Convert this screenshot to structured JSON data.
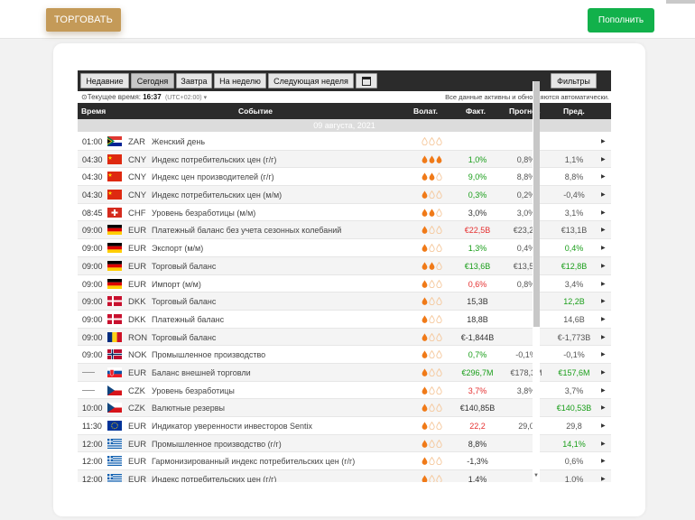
{
  "header": {
    "trade_label": "ТОРГОВАТЬ",
    "deposit_label": "Пополнить"
  },
  "toolbar": {
    "tabs": [
      {
        "label": "Недавние"
      },
      {
        "label": "Сегодня"
      },
      {
        "label": "Завтра"
      },
      {
        "label": "На неделю"
      },
      {
        "label": "Следующая неделя"
      }
    ],
    "calendar_icon": "calendar-icon",
    "filters_label": "Фильтры"
  },
  "status": {
    "time_label": "Текущее время:",
    "time_value": "16:37",
    "timezone": "(UTC+02:00)",
    "note": "Все данные активны и обновляются автоматически."
  },
  "columns": {
    "time": "Время",
    "event": "Событие",
    "volatility": "Волат.",
    "actual": "Факт.",
    "forecast": "Прогноз",
    "previous": "Пред."
  },
  "date_label": "09 августа, 2021",
  "colors": {
    "green": "#1a9e1a",
    "red": "#e53030",
    "volatility_high": "#f07a18",
    "volatility_low": "#f5c79a",
    "trade_button": "#c49a58",
    "deposit_button": "#12b14b"
  },
  "events": [
    {
      "time": "01:00",
      "flag": "za",
      "currency": "ZAR",
      "event": "Женский день",
      "vol": 0,
      "actual": "",
      "actual_color": "",
      "forecast": "",
      "previous": "",
      "previous_color": ""
    },
    {
      "time": "04:30",
      "flag": "cn",
      "currency": "CNY",
      "event": "Индекс потребительских цен (г/г)",
      "vol": 3,
      "actual": "1,0%",
      "actual_color": "green",
      "forecast": "0,8%",
      "previous": "1,1%",
      "previous_color": ""
    },
    {
      "time": "04:30",
      "flag": "cn",
      "currency": "CNY",
      "event": "Индекс цен производителей (г/г)",
      "vol": 2,
      "actual": "9,0%",
      "actual_color": "green",
      "forecast": "8,8%",
      "previous": "8,8%",
      "previous_color": ""
    },
    {
      "time": "04:30",
      "flag": "cn",
      "currency": "CNY",
      "event": "Индекс потребительских цен (м/м)",
      "vol": 1,
      "actual": "0,3%",
      "actual_color": "green",
      "forecast": "0,2%",
      "previous": "-0,4%",
      "previous_color": ""
    },
    {
      "time": "08:45",
      "flag": "ch",
      "currency": "CHF",
      "event": "Уровень безработицы (м/м)",
      "vol": 2,
      "actual": "3,0%",
      "actual_color": "",
      "forecast": "3,0%",
      "previous": "3,1%",
      "previous_color": ""
    },
    {
      "time": "09:00",
      "flag": "de",
      "currency": "EUR",
      "event": "Платежный баланс без учета сезонных колебаний",
      "vol": 1,
      "actual": "€22,5B",
      "actual_color": "red",
      "forecast": "€23,2B",
      "previous": "€13,1B",
      "previous_color": ""
    },
    {
      "time": "09:00",
      "flag": "de",
      "currency": "EUR",
      "event": "Экспорт (м/м)",
      "vol": 1,
      "actual": "1,3%",
      "actual_color": "green",
      "forecast": "0,4%",
      "previous": "0,4%",
      "previous_color": "green"
    },
    {
      "time": "09:00",
      "flag": "de",
      "currency": "EUR",
      "event": "Торговый баланс",
      "vol": 2,
      "actual": "€13,6B",
      "actual_color": "green",
      "forecast": "€13,5B",
      "previous": "€12,8B",
      "previous_color": "green"
    },
    {
      "time": "09:00",
      "flag": "de",
      "currency": "EUR",
      "event": "Импорт (м/м)",
      "vol": 1,
      "actual": "0,6%",
      "actual_color": "red",
      "forecast": "0,8%",
      "previous": "3,4%",
      "previous_color": ""
    },
    {
      "time": "09:00",
      "flag": "dk",
      "currency": "DKK",
      "event": "Торговый баланс",
      "vol": 1,
      "actual": "15,3B",
      "actual_color": "",
      "forecast": "",
      "previous": "12,2B",
      "previous_color": "green"
    },
    {
      "time": "09:00",
      "flag": "dk",
      "currency": "DKK",
      "event": "Платежный баланс",
      "vol": 1,
      "actual": "18,8B",
      "actual_color": "",
      "forecast": "",
      "previous": "14,6B",
      "previous_color": ""
    },
    {
      "time": "09:00",
      "flag": "ro",
      "currency": "RON",
      "event": "Торговый баланс",
      "vol": 1,
      "actual": "€-1,844B",
      "actual_color": "",
      "forecast": "",
      "previous": "€-1,773B",
      "previous_color": ""
    },
    {
      "time": "09:00",
      "flag": "no",
      "currency": "NOK",
      "event": "Промышленное производство",
      "vol": 1,
      "actual": "0,7%",
      "actual_color": "green",
      "forecast": "-0,1%",
      "previous": "-0,1%",
      "previous_color": ""
    },
    {
      "time": "",
      "flag": "sk",
      "currency": "EUR",
      "event": "Баланс внешней торговли",
      "vol": 1,
      "actual": "€296,7M",
      "actual_color": "green",
      "forecast": "€178,3M",
      "previous": "€157,6M",
      "previous_color": "green"
    },
    {
      "time": "",
      "flag": "cz",
      "currency": "CZK",
      "event": "Уровень безработицы",
      "vol": 1,
      "actual": "3,7%",
      "actual_color": "red",
      "forecast": "3,8%",
      "previous": "3,7%",
      "previous_color": ""
    },
    {
      "time": "10:00",
      "flag": "cz",
      "currency": "CZK",
      "event": "Валютные резервы",
      "vol": 1,
      "actual": "€140,85B",
      "actual_color": "",
      "forecast": "",
      "previous": "€140,53B",
      "previous_color": "green"
    },
    {
      "time": "11:30",
      "flag": "eu",
      "currency": "EUR",
      "event": "Индикатор уверенности инвесторов Sentix",
      "vol": 1,
      "actual": "22,2",
      "actual_color": "red",
      "forecast": "29,0",
      "previous": "29,8",
      "previous_color": ""
    },
    {
      "time": "12:00",
      "flag": "gr",
      "currency": "EUR",
      "event": "Промышленное производство (г/г)",
      "vol": 1,
      "actual": "8,8%",
      "actual_color": "",
      "forecast": "",
      "previous": "14,1%",
      "previous_color": "green"
    },
    {
      "time": "12:00",
      "flag": "gr",
      "currency": "EUR",
      "event": "Гармонизированный индекс потребительских цен (г/г)",
      "vol": 1,
      "actual": "-1,3%",
      "actual_color": "",
      "forecast": "",
      "previous": "0,6%",
      "previous_color": ""
    },
    {
      "time": "12:00",
      "flag": "gr",
      "currency": "EUR",
      "event": "Индекс потребительских цен (г/г)",
      "vol": 1,
      "actual": "1,4%",
      "actual_color": "",
      "forecast": "",
      "previous": "1,0%",
      "previous_color": ""
    }
  ]
}
